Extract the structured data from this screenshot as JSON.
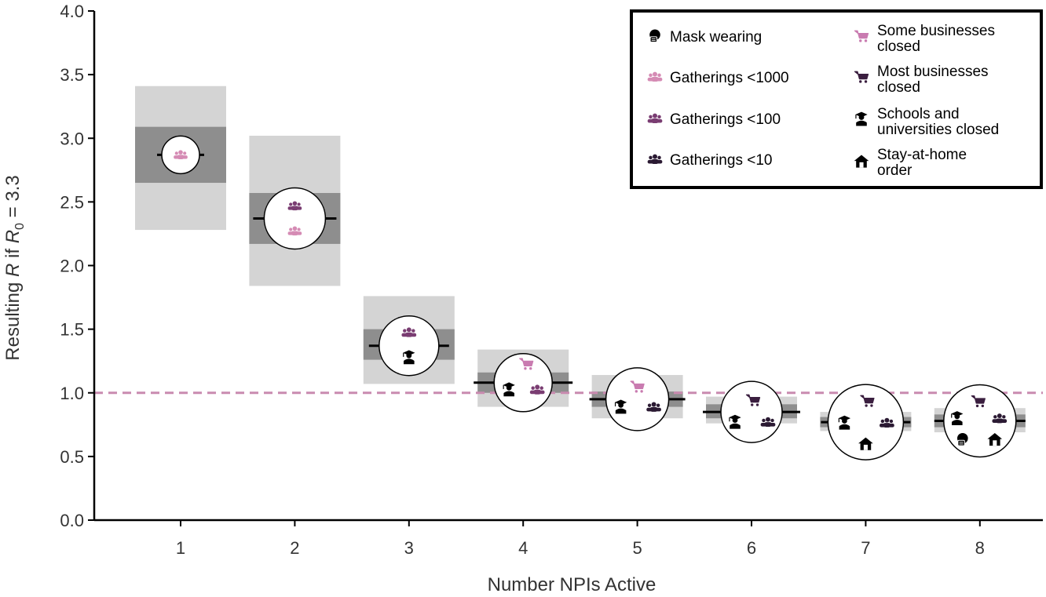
{
  "chart_data": {
    "type": "bar",
    "xlabel": "Number NPIs Active",
    "ylabel_parts": [
      "Resulting ",
      "R",
      " if ",
      "R",
      "0",
      " = 3.3"
    ],
    "ylim": [
      0.0,
      4.0
    ],
    "y_ticks": [
      "0.0",
      "0.5",
      "1.0",
      "1.5",
      "2.0",
      "2.5",
      "3.0",
      "3.5",
      "4.0"
    ],
    "categories": [
      "1",
      "2",
      "3",
      "4",
      "5",
      "6",
      "7",
      "8"
    ],
    "median": [
      2.87,
      2.37,
      1.37,
      1.08,
      0.95,
      0.85,
      0.77,
      0.78
    ],
    "inner_interval": [
      [
        2.65,
        3.09
      ],
      [
        2.17,
        2.57
      ],
      [
        1.26,
        1.5
      ],
      [
        1.0,
        1.16
      ],
      [
        0.89,
        1.01
      ],
      [
        0.8,
        0.91
      ],
      [
        0.73,
        0.81
      ],
      [
        0.73,
        0.83
      ]
    ],
    "outer_interval": [
      [
        2.28,
        3.41
      ],
      [
        1.84,
        3.02
      ],
      [
        1.07,
        1.76
      ],
      [
        0.89,
        1.34
      ],
      [
        0.8,
        1.14
      ],
      [
        0.76,
        0.97
      ],
      [
        0.7,
        0.85
      ],
      [
        0.69,
        0.88
      ]
    ],
    "reference_line": 1.0,
    "grid": false,
    "legend_position": "top-right",
    "npi_icon_sets": [
      [
        "gatherings-1000"
      ],
      [
        "gatherings-100",
        "gatherings-1000"
      ],
      [
        "gatherings-100",
        "schools-closed"
      ],
      [
        "some-businesses",
        "schools-closed",
        "gatherings-100"
      ],
      [
        "some-businesses",
        "schools-closed",
        "gatherings-10"
      ],
      [
        "most-businesses",
        "schools-closed",
        "gatherings-10"
      ],
      [
        "most-businesses",
        "schools-closed",
        "gatherings-10",
        "stay-at-home"
      ],
      [
        "most-businesses",
        "schools-closed",
        "gatherings-10",
        "mask-wearing",
        "stay-at-home"
      ]
    ],
    "legend": [
      {
        "name": "Mask wearing",
        "icon": "mask-wearing"
      },
      {
        "name": "Gatherings <1000",
        "icon": "gatherings-1000"
      },
      {
        "name": "Gatherings <100",
        "icon": "gatherings-100"
      },
      {
        "name": "Gatherings <10",
        "icon": "gatherings-10"
      },
      {
        "name": "Some businesses closed",
        "icon": "some-businesses"
      },
      {
        "name": "Most businesses closed",
        "icon": "most-businesses"
      },
      {
        "name": "Schools and universities closed",
        "icon": "schools-closed"
      },
      {
        "name": "Stay-at-home order",
        "icon": "stay-at-home"
      }
    ],
    "colors": {
      "outer": "#d4d4d4",
      "inner": "#8e8e8e",
      "median": "#000000",
      "reference": "#c98bb0",
      "gatherings-1000": "#d58bb4",
      "gatherings-100": "#7a3d72",
      "gatherings-10": "#2b1a33",
      "some-businesses": "#c97bb0",
      "most-businesses": "#3a1e3f",
      "icon-dark": "#000000"
    }
  }
}
